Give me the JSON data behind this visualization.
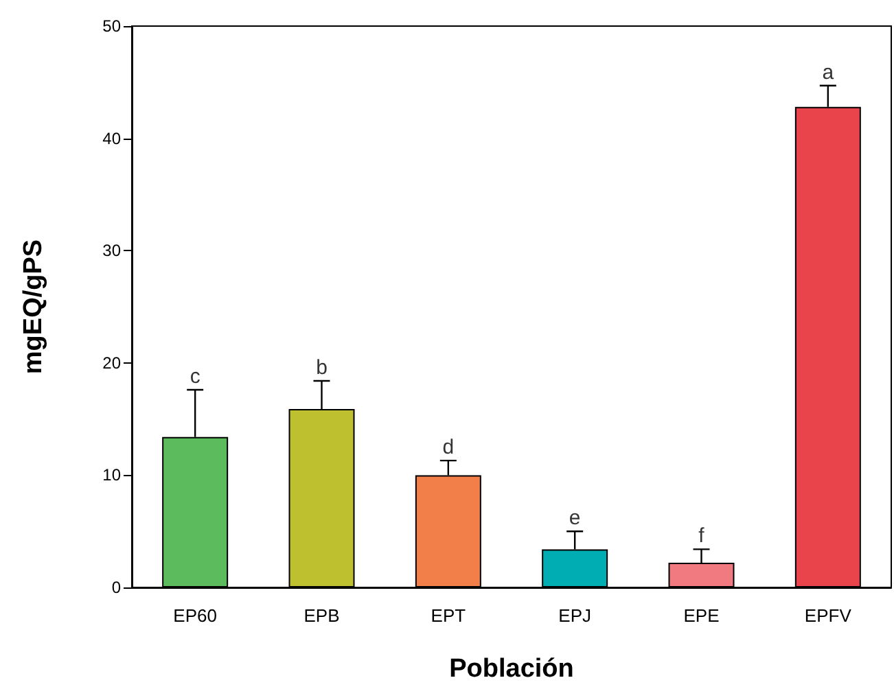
{
  "chart_data": {
    "type": "bar",
    "xlabel": "Población",
    "ylabel": "mgEQ/gPS",
    "categories": [
      "EP60",
      "EPB",
      "EPT",
      "EPJ",
      "EPE",
      "EPFV"
    ],
    "values": [
      13.4,
      15.9,
      10.0,
      3.4,
      2.2,
      42.8
    ],
    "colors": [
      "#5cbb5c",
      "#bfc02f",
      "#f27e4a",
      "#00adb2",
      "#f07a80",
      "#e9434b"
    ],
    "errors": [
      [
        13.4,
        17.6
      ],
      [
        15.9,
        18.4
      ],
      [
        10.0,
        11.3
      ],
      [
        3.4,
        5.0
      ],
      [
        2.2,
        3.4
      ],
      [
        42.8,
        44.7
      ]
    ],
    "ylim": [
      0,
      50
    ],
    "yticks": [
      0,
      10,
      20,
      30,
      40,
      50
    ],
    "grid": false,
    "annotations": [
      {
        "text": "c",
        "x": "EP60",
        "y": 17.6
      },
      {
        "text": "b",
        "x": "EPB",
        "y": 18.4
      },
      {
        "text": "d",
        "x": "EPT",
        "y": 11.3
      },
      {
        "text": "e",
        "x": "EPJ",
        "y": 5.0
      },
      {
        "text": "f",
        "x": "EPE",
        "y": 3.4
      },
      {
        "text": "a",
        "x": "EPFV",
        "y": 44.7
      }
    ]
  }
}
